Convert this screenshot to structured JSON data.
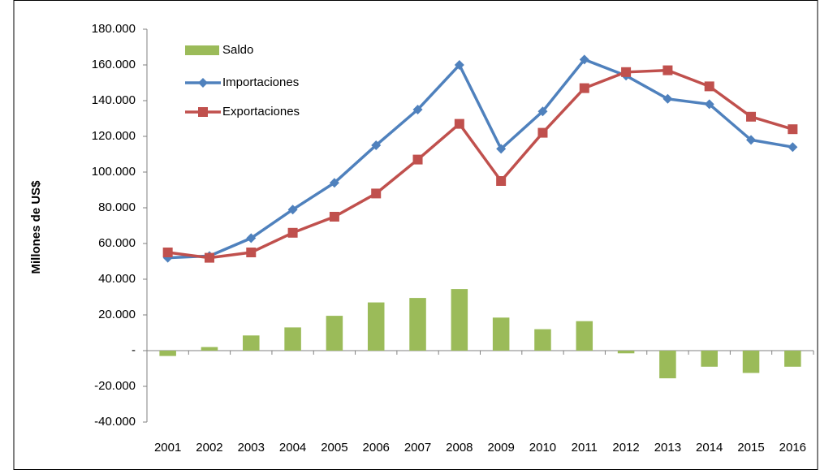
{
  "chart_data": {
    "type": "bar_line",
    "y_label": "Millones de US$",
    "categories": [
      "2001",
      "2002",
      "2003",
      "2004",
      "2005",
      "2006",
      "2007",
      "2008",
      "2009",
      "2010",
      "2011",
      "2012",
      "2013",
      "2014",
      "2015",
      "2016"
    ],
    "series": [
      {
        "name": "Saldo",
        "type": "bar",
        "color": "#9bbb59",
        "values": [
          -3000,
          2000,
          8500,
          13000,
          19500,
          27000,
          29500,
          34500,
          18500,
          12000,
          16500,
          -1500,
          -15500,
          -9000,
          -12500,
          -9000
        ]
      },
      {
        "name": "Importaciones",
        "type": "line",
        "marker": "diamond",
        "color": "#4f81bd",
        "values": [
          52000,
          53000,
          63000,
          79000,
          94000,
          115000,
          135000,
          160000,
          113000,
          134000,
          163000,
          154000,
          141000,
          138000,
          118000,
          114000
        ]
      },
      {
        "name": "Exportaciones",
        "type": "line",
        "marker": "square",
        "color": "#c0504d",
        "values": [
          55000,
          52000,
          55000,
          66000,
          75000,
          88000,
          107000,
          127000,
          95000,
          122000,
          147000,
          156000,
          157000,
          148000,
          131000,
          124000
        ]
      }
    ],
    "ylim": [
      -40000,
      180000
    ],
    "yticks": [
      {
        "value": -40000,
        "label": "-40.000"
      },
      {
        "value": -20000,
        "label": "-20.000"
      },
      {
        "value": 0,
        "label": "-"
      },
      {
        "value": 20000,
        "label": "20.000"
      },
      {
        "value": 40000,
        "label": "40.000"
      },
      {
        "value": 60000,
        "label": "60.000"
      },
      {
        "value": 80000,
        "label": "80.000"
      },
      {
        "value": 100000,
        "label": "100.000"
      },
      {
        "value": 120000,
        "label": "120.000"
      },
      {
        "value": 140000,
        "label": "140.000"
      },
      {
        "value": 160000,
        "label": "160.000"
      },
      {
        "value": 180000,
        "label": "180.000"
      }
    ],
    "legend": "upper left"
  }
}
